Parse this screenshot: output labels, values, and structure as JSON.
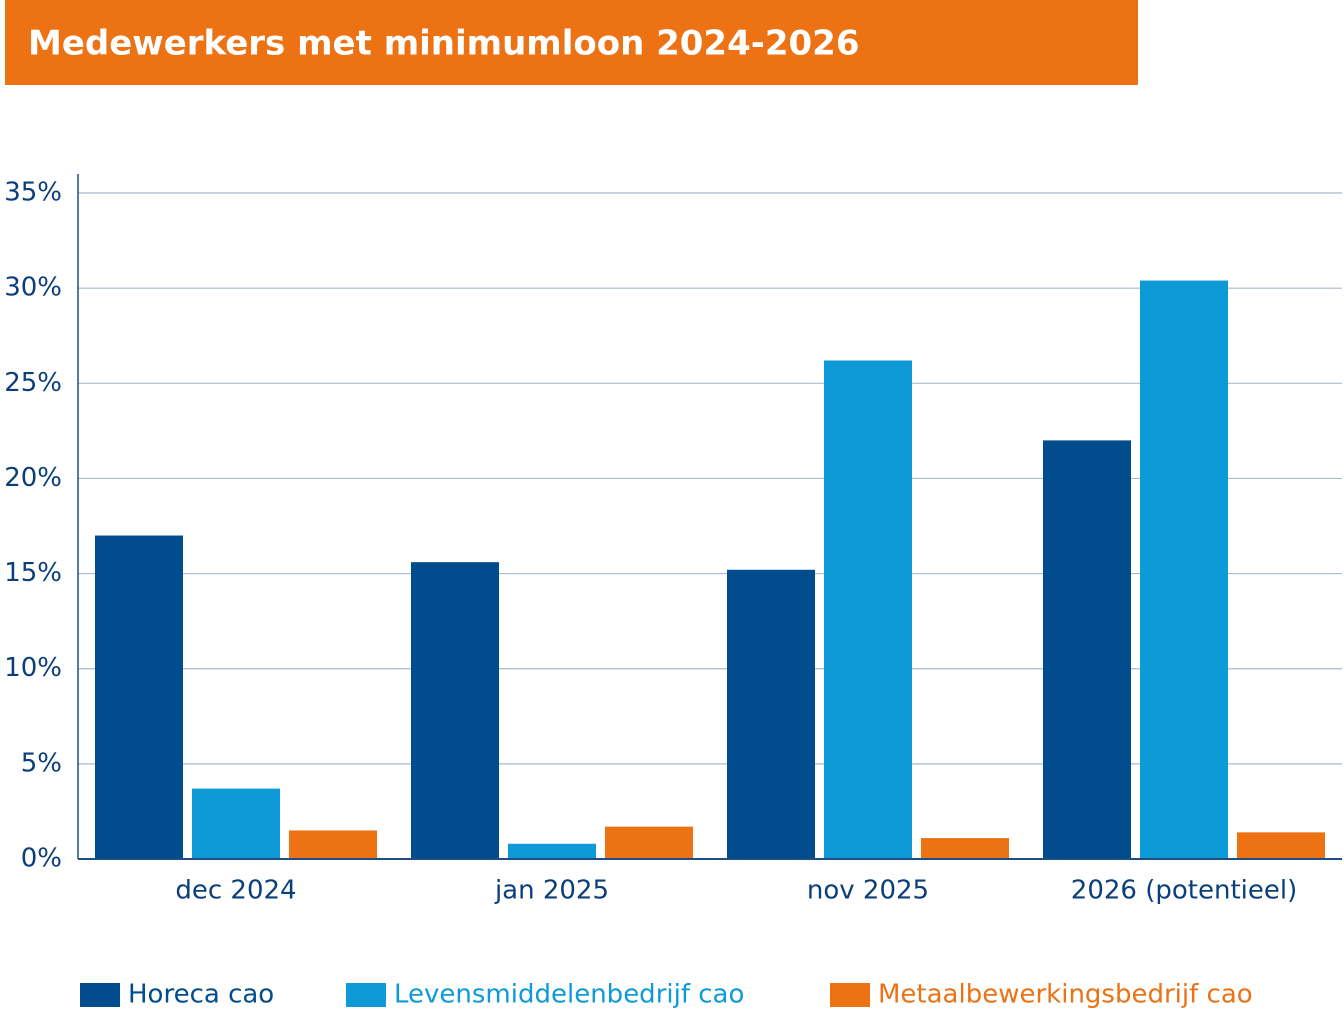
{
  "chart_data": {
    "type": "bar",
    "title": "Medewerkers met minimumloon 2024-2026",
    "categories": [
      "dec 2024",
      "jan 2025",
      "nov 2025",
      "2026 (potentieel)"
    ],
    "series": [
      {
        "name": "Horeca cao",
        "color": "#004c8c",
        "values": [
          17.0,
          15.6,
          15.2,
          22.0
        ]
      },
      {
        "name": "Levensmiddelenbedrijf cao",
        "color": "#0e9ad7",
        "values": [
          3.7,
          0.8,
          26.2,
          30.4
        ]
      },
      {
        "name": "Metaalbewerkingsbedrijf cao",
        "color": "#ec7214",
        "values": [
          1.5,
          1.7,
          1.1,
          1.4
        ]
      }
    ],
    "ylim": [
      0,
      36
    ],
    "yticks": [
      {
        "value": 0,
        "label": "0%"
      },
      {
        "value": 5,
        "label": "5%"
      },
      {
        "value": 10,
        "label": "10%"
      },
      {
        "value": 15,
        "label": "15%"
      },
      {
        "value": 20,
        "label": "20%"
      },
      {
        "value": 25,
        "label": "25%"
      },
      {
        "value": 30,
        "label": "30%"
      },
      {
        "value": 35,
        "label": "35%"
      }
    ],
    "grid": true
  }
}
